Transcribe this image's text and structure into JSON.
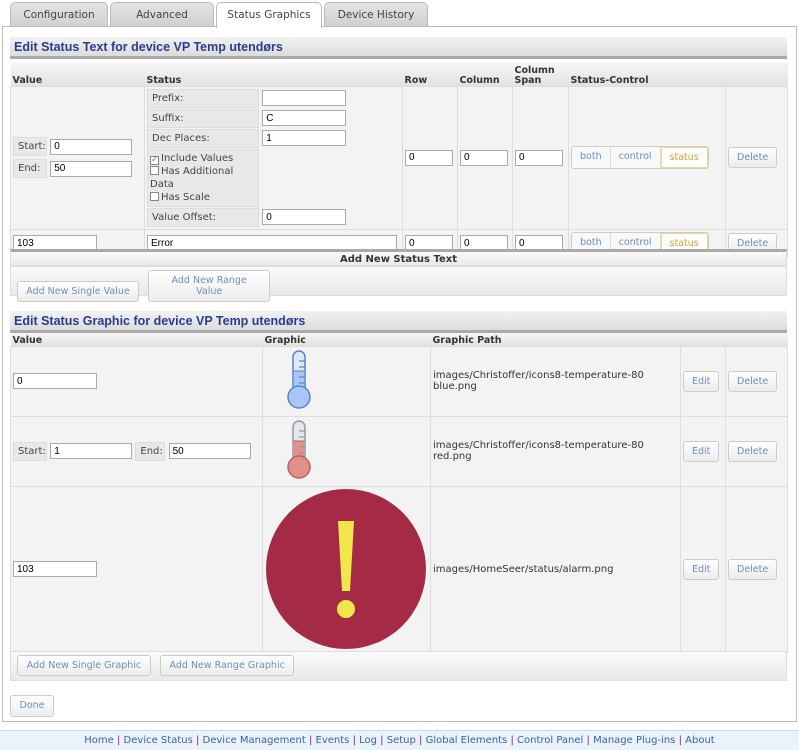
{
  "tabs": [
    {
      "label": "Configuration"
    },
    {
      "label": "Advanced"
    },
    {
      "label": "Status Graphics",
      "active": true
    },
    {
      "label": "Device History"
    }
  ],
  "status_text": {
    "title": "Edit Status Text for device VP Temp utendørs",
    "headers": {
      "value": "Value",
      "status": "Status",
      "row": "Row",
      "column": "Column",
      "column_span": "Column Span",
      "status_control": "Status-Control"
    },
    "range_row": {
      "start_label": "Start:",
      "start": "0",
      "end_label": "End:",
      "end": "50",
      "prefix_label": "Prefix:",
      "prefix": "",
      "suffix_label": "Suffix:",
      "suffix": "C",
      "dec_label": "Dec Places:",
      "dec": "1",
      "include_values": "Include Values",
      "include_values_checked": true,
      "has_additional": "Has Additional Data",
      "has_additional_checked": false,
      "has_scale": "Has Scale",
      "has_scale_checked": false,
      "offset_label": "Value Offset:",
      "offset": "0",
      "row": "0",
      "column": "0",
      "span": "0"
    },
    "single_row": {
      "value": "103",
      "status": "Error",
      "row": "0",
      "column": "0",
      "span": "0"
    },
    "control": {
      "both": "both",
      "control": "control",
      "status": "status",
      "selected": "status"
    },
    "delete": "Delete",
    "add_bar": "Add New Status Text",
    "add_single": "Add New Single Value",
    "add_range": "Add New Range Value"
  },
  "status_graphic": {
    "title": "Edit Status Graphic for device VP Temp utendørs",
    "headers": {
      "value": "Value",
      "graphic": "Graphic",
      "path": "Graphic Path"
    },
    "rows": [
      {
        "value": "0",
        "path": "images/Christoffer/icons8-temperature-80 blue.png",
        "icon": "thermometer-blue-icon"
      },
      {
        "start_label": "Start:",
        "start": "1",
        "end_label": "End:",
        "end": "50",
        "path": "images/Christoffer/icons8-temperature-80 red.png",
        "icon": "thermometer-red-icon"
      },
      {
        "value": "103",
        "path": "images/HomeSeer/status/alarm.png",
        "icon": "alarm-icon"
      }
    ],
    "edit": "Edit",
    "delete": "Delete",
    "add_single": "Add New Single Graphic",
    "add_range": "Add New Range Graphic"
  },
  "done": "Done",
  "footer": [
    "Home",
    "Device Status",
    "Device Management",
    "Events",
    "Log",
    "Setup",
    "Global Elements",
    "Control Panel",
    "Manage Plug-ins",
    "About"
  ],
  "colors": {
    "title": "#2b3b8f",
    "link": "#3a64a8",
    "selected": "#d99a3a",
    "alarm": "#a52a45"
  }
}
